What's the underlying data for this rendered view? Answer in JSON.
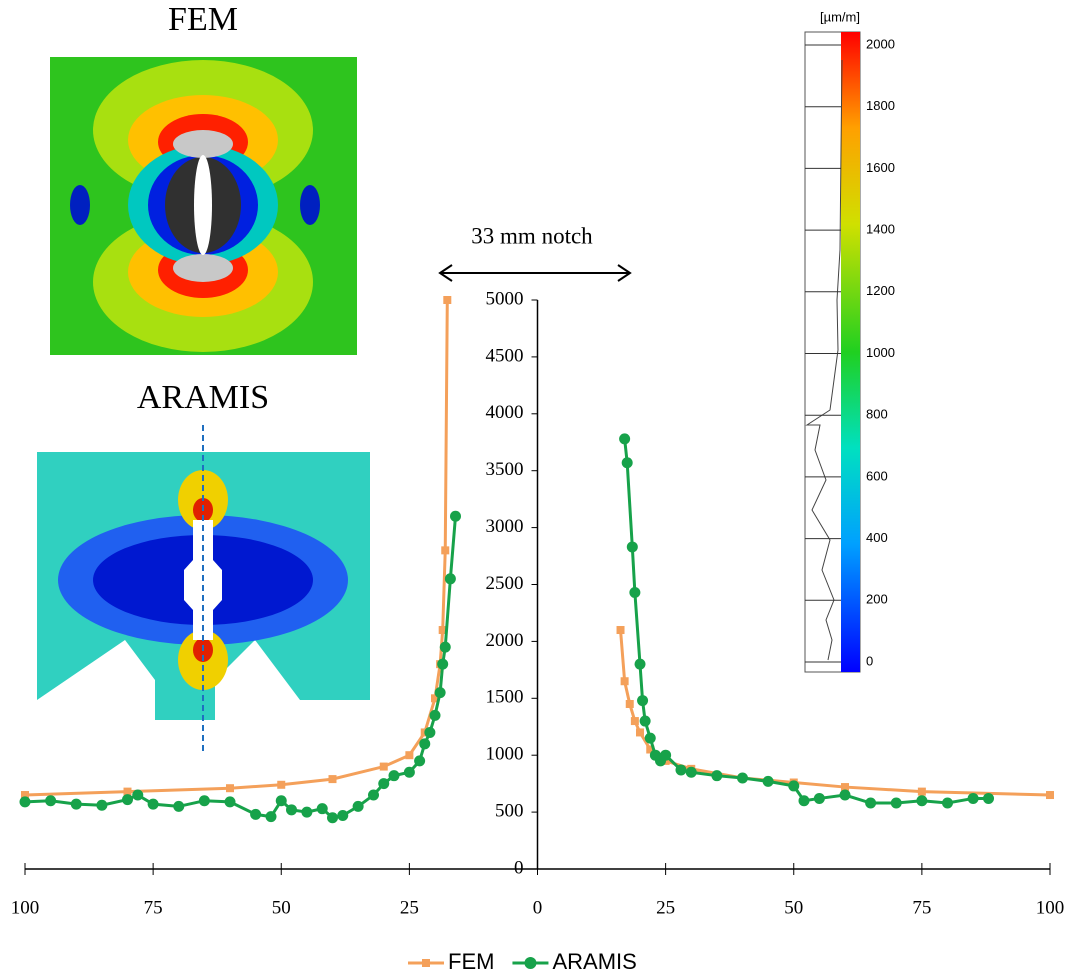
{
  "chart_data": {
    "type": "line",
    "annotation": "33 mm notch",
    "inset_titles": [
      "FEM",
      "ARAMIS"
    ],
    "xlim": [
      -100,
      100
    ],
    "xticks": [
      {
        "value": -100,
        "label": "100"
      },
      {
        "value": -75,
        "label": "75"
      },
      {
        "value": -50,
        "label": "50"
      },
      {
        "value": -25,
        "label": "25"
      },
      0,
      25,
      50,
      75,
      100
    ],
    "ylim": [
      0,
      5000
    ],
    "yticks": [
      0,
      500,
      1000,
      1500,
      2000,
      2500,
      3000,
      3500,
      4000,
      4500,
      5000
    ],
    "series": [
      {
        "name": "FEM",
        "color": "#f4a05a",
        "marker": "square",
        "x": [
          -100,
          -80,
          -60,
          -50,
          -40,
          -30,
          -25,
          -22,
          -20,
          -19,
          -18.5,
          -18,
          -17.6,
          null,
          16.2,
          17,
          18,
          19,
          20,
          22,
          25,
          30,
          40,
          50,
          60,
          75,
          100
        ],
        "values": [
          650,
          680,
          710,
          740,
          790,
          900,
          1000,
          1200,
          1500,
          1800,
          2100,
          2800,
          5000,
          null,
          2100,
          1650,
          1450,
          1300,
          1200,
          1050,
          950,
          880,
          800,
          760,
          720,
          680,
          650
        ]
      },
      {
        "name": "ARAMIS",
        "color": "#17a24a",
        "marker": "circle",
        "x": [
          -100,
          -95,
          -90,
          -85,
          -80,
          -78,
          -75,
          -70,
          -65,
          -60,
          -55,
          -52,
          -50,
          -48,
          -45,
          -42,
          -40,
          -38,
          -35,
          -32,
          -30,
          -28,
          -25,
          -23,
          -22,
          -21,
          -20,
          -19,
          -18.5,
          -18,
          -17,
          -16,
          null,
          17,
          17.5,
          18.5,
          19,
          20,
          20.5,
          21,
          22,
          23,
          24,
          25,
          28,
          30,
          35,
          40,
          45,
          50,
          52,
          55,
          60,
          65,
          70,
          75,
          80,
          85,
          88
        ],
        "values": [
          590,
          600,
          570,
          560,
          610,
          650,
          570,
          550,
          600,
          590,
          480,
          460,
          600,
          520,
          500,
          530,
          450,
          470,
          550,
          650,
          750,
          820,
          850,
          950,
          1100,
          1200,
          1350,
          1550,
          1800,
          1950,
          2550,
          3100,
          null,
          3780,
          3570,
          2830,
          2430,
          1800,
          1480,
          1300,
          1150,
          1000,
          950,
          1000,
          870,
          850,
          820,
          800,
          770,
          730,
          600,
          620,
          650,
          580,
          580,
          600,
          580,
          620,
          620
        ]
      }
    ],
    "colorbar": {
      "unit": "[µm/m]",
      "lim": [
        0,
        2000
      ],
      "ticks": [
        0,
        200,
        400,
        600,
        800,
        1000,
        1200,
        1400,
        1600,
        1800,
        2000
      ]
    }
  }
}
